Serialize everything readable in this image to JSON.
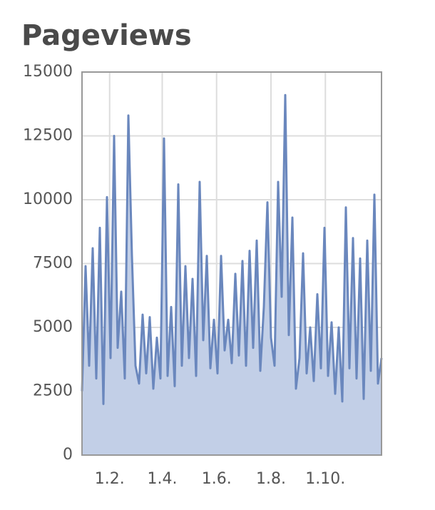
{
  "chart_data": {
    "type": "area",
    "title": "Pageviews",
    "x": [
      0,
      4,
      8,
      12,
      16,
      20,
      24,
      28,
      32,
      36,
      40,
      44,
      48,
      52,
      56,
      60,
      64,
      68,
      72,
      76,
      80,
      84,
      88,
      92,
      96,
      100,
      104,
      108,
      112,
      116,
      120,
      124,
      128,
      132,
      136,
      140,
      144,
      148,
      152,
      156,
      160,
      164,
      168,
      172,
      176,
      180,
      184,
      188,
      192,
      196,
      200,
      204,
      208,
      212,
      216,
      220,
      224,
      228,
      232,
      236,
      240,
      244,
      248,
      252,
      256,
      260,
      264,
      268,
      272,
      276,
      280,
      284,
      288,
      292,
      296,
      300,
      304,
      308,
      312,
      316,
      320,
      324,
      328,
      332,
      336
    ],
    "series": [
      {
        "name": "Pageviews",
        "color": "#6a87bd",
        "fill": "#c2cfe7",
        "values": [
          2500,
          7400,
          3500,
          8100,
          3000,
          8900,
          2000,
          10100,
          3800,
          12500,
          4200,
          6400,
          3000,
          13300,
          7800,
          3500,
          2800,
          5500,
          3200,
          5400,
          2600,
          4600,
          3000,
          12400,
          3100,
          5800,
          2700,
          10600,
          3500,
          7400,
          3800,
          6900,
          3100,
          10700,
          4500,
          7800,
          3400,
          5300,
          3200,
          7800,
          4100,
          5300,
          3600,
          7100,
          3900,
          7600,
          3500,
          8000,
          4200,
          8400,
          3300,
          5800,
          9900,
          4600,
          3500,
          10700,
          6200,
          14100,
          4700,
          9300,
          2600,
          3800,
          7900,
          3200,
          5000,
          2900,
          6300,
          3400,
          8900,
          3100,
          5200,
          2400,
          5000,
          2100,
          9700,
          3400,
          8500,
          3000,
          7700,
          2200,
          8400,
          3300,
          10200,
          2800,
          3800
        ]
      }
    ],
    "xlim": [
      0,
      336
    ],
    "xticks": [
      {
        "value": 31,
        "label": "1.2."
      },
      {
        "value": 90,
        "label": "1.4."
      },
      {
        "value": 151,
        "label": "1.6."
      },
      {
        "value": 212,
        "label": "1.8."
      },
      {
        "value": 273,
        "label": "1.10."
      }
    ],
    "ylim": [
      0,
      15000
    ],
    "yticks": [
      0,
      2500,
      5000,
      7500,
      10000,
      12500,
      15000
    ],
    "grid": true
  }
}
